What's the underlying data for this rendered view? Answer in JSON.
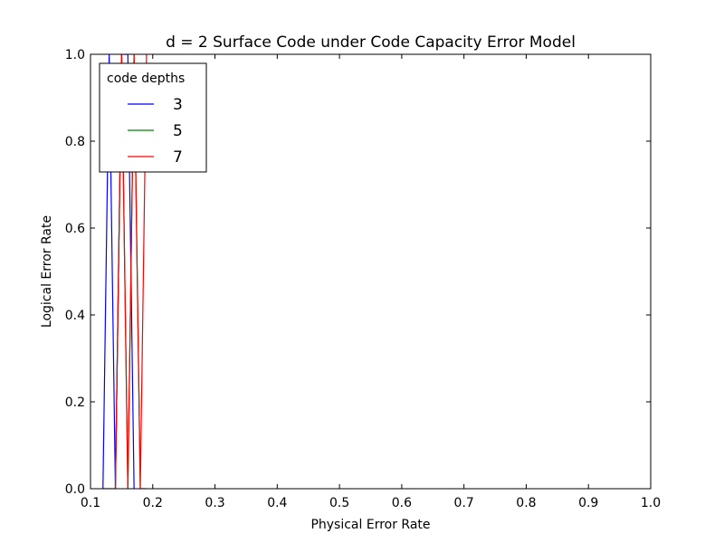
{
  "chart_data": {
    "type": "line",
    "title": "d = 2 Surface Code under Code Capacity Error Model",
    "xlabel": "Physical Error Rate",
    "ylabel": "Logical Error Rate",
    "xlim": [
      0.1,
      1.0
    ],
    "ylim": [
      0.0,
      1.0
    ],
    "xticks": [
      "0.1",
      "0.2",
      "0.3",
      "0.4",
      "0.5",
      "0.6",
      "0.7",
      "0.8",
      "0.9",
      "1.0"
    ],
    "yticks": [
      "0.0",
      "0.2",
      "0.4",
      "0.6",
      "0.8",
      "1.0"
    ],
    "grid": false,
    "legend": {
      "title": "code depths",
      "placement": "top-left"
    },
    "series": [
      {
        "name": "3",
        "color": "#0000ff",
        "x": [
          0.12,
          0.13,
          0.14,
          0.15,
          0.16,
          0.17
        ],
        "y": [
          0.0,
          1.0,
          0.0,
          1.0,
          1.0,
          0.0
        ]
      },
      {
        "name": "5",
        "color": "#008000",
        "x": [
          0.14,
          0.15,
          0.16,
          0.17,
          0.18,
          0.19
        ],
        "y": [
          0.0,
          1.0,
          0.0,
          1.0,
          0.0,
          0.0
        ]
      },
      {
        "name": "7",
        "color": "#ff0000",
        "x": [
          0.12,
          0.14,
          0.15,
          0.16,
          0.17,
          0.18,
          0.19
        ],
        "y": [
          0.0,
          0.0,
          1.0,
          0.0,
          1.0,
          0.0,
          1.0
        ]
      }
    ]
  }
}
